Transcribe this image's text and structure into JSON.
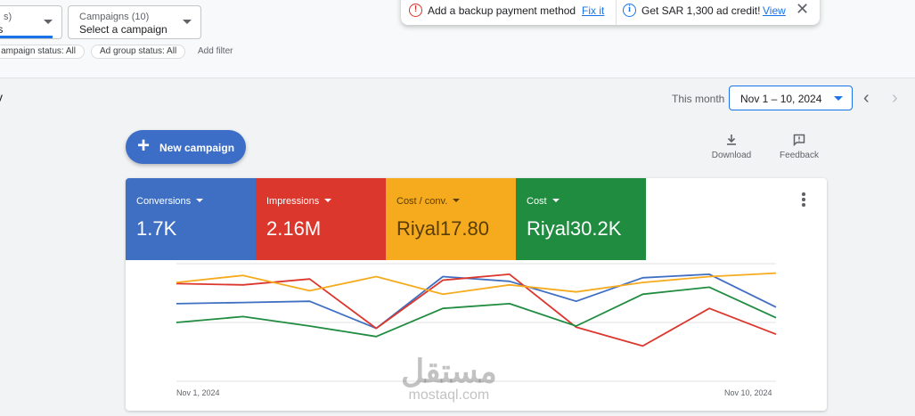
{
  "top": {
    "selector1": {
      "small": "s)",
      "value": "paigns"
    },
    "selector2": {
      "small": "Campaigns (10)",
      "value": "Select a campaign"
    },
    "chips": [
      "ampaign status: All",
      "Ad group status: All"
    ],
    "add_filter": "Add filter"
  },
  "notice": {
    "message1": "Add a backup payment method",
    "link1": "Fix it",
    "message2": "Get SAR 1,300 ad credit!",
    "link2": "View"
  },
  "overview": {
    "title": "v",
    "range_label": "This month",
    "range_value": "Nov 1 – 10, 2024"
  },
  "actions": {
    "new_campaign": "New campaign",
    "download": "Download",
    "feedback": "Feedback"
  },
  "metrics": [
    {
      "label": "Conversions",
      "value": "1.7K",
      "color": "#3f6fc2"
    },
    {
      "label": "Impressions",
      "value": "2.16M",
      "color": "#db372d"
    },
    {
      "label": "Cost / conv.",
      "value": "Riyal17.80",
      "color": "#f6ab1e"
    },
    {
      "label": "Cost",
      "value": "Riyal30.2K",
      "color": "#1f8c40"
    }
  ],
  "chart_data": {
    "type": "line",
    "x": [
      "Nov 1",
      "Nov 2",
      "Nov 3",
      "Nov 4",
      "Nov 5",
      "Nov 6",
      "Nov 7",
      "Nov 8",
      "Nov 9",
      "Nov 10"
    ],
    "x_tick_labels": [
      "Nov 1, 2024",
      "Nov 10, 2024"
    ],
    "grid": true,
    "legend": "none",
    "ylim": [
      0,
      100
    ],
    "series": [
      {
        "color": "#3f6fc2",
        "values": [
          66,
          67,
          68,
          45,
          89,
          85,
          68,
          88,
          91,
          63
        ]
      },
      {
        "color": "#db372d",
        "values": [
          83,
          82,
          87,
          45,
          86,
          91,
          46,
          30,
          62,
          40
        ]
      },
      {
        "color": "#f6ab1e",
        "values": [
          84,
          90,
          77,
          89,
          74,
          82,
          76,
          84,
          89,
          92
        ]
      },
      {
        "color": "#1f8c40",
        "values": [
          50,
          55,
          47,
          38,
          62,
          66,
          47,
          74,
          80,
          54
        ]
      }
    ]
  },
  "watermark": {
    "arabic": "مستقل",
    "latin": "mostaql.com"
  }
}
